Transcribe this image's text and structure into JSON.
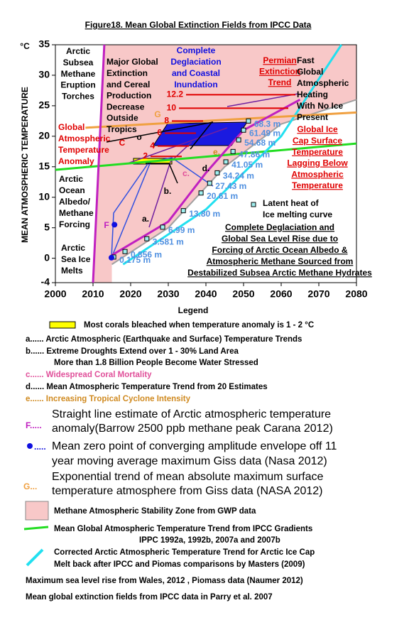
{
  "chart_data": {
    "type": "line",
    "title": "Figure18. Mean Global Extinction Fields from IPCC Data",
    "y_unit": "°C",
    "ylabel": "MEAN ATMOSPHERIC TEMPERATURE",
    "xlabel": "Legend",
    "xlim": [
      2000,
      2080
    ],
    "xticks": [
      2000,
      2010,
      2020,
      2030,
      2040,
      2050,
      2060,
      2070,
      2080
    ],
    "ylim": [
      -4,
      35
    ],
    "yticks": [
      -4,
      0,
      5,
      10,
      15,
      20,
      25,
      30,
      35
    ],
    "series": [
      {
        "color": "#a0a0a0",
        "x": [
          2015,
          2030,
          2045,
          2060,
          2080
        ],
        "values": [
          -1,
          5,
          15,
          22,
          26
        ]
      },
      {
        "color": "#22dd22",
        "x": [
          2000,
          2080
        ],
        "values": [
          14.5,
          18.8
        ]
      },
      {
        "color": "#22e0f0",
        "x": [
          2018,
          2040,
          2060,
          2076
        ],
        "values": [
          -1,
          8,
          20,
          35
        ]
      },
      {
        "color": "#f0a040",
        "x": [
          2008,
          2080
        ],
        "values": [
          21.4,
          23.9
        ]
      },
      {
        "color": "#c020c0",
        "x": [
          2010,
          2013
        ],
        "values": [
          -4,
          35
        ]
      },
      {
        "color": "#c020c0",
        "x": [
          2015,
          2030,
          2040,
          2050,
          2065
        ],
        "values": [
          0.5,
          6,
          14,
          21,
          26
        ]
      }
    ],
    "sea_level": {
      "color": "#5090e0",
      "x": [
        2015.5,
        2018.5,
        2024.3,
        2028.5,
        2034,
        2038.7,
        2041,
        2043,
        2045.3,
        2047.2,
        2048.7,
        2050,
        2051.3
      ],
      "values": [
        0.2,
        1.1,
        3.2,
        5.1,
        7.8,
        10.7,
        12.3,
        14,
        15.8,
        17.5,
        19.4,
        21,
        22.5
      ],
      "labels": [
        "0.175 m",
        "0.856 m",
        "3.581 m",
        "6.99 m",
        "13.80 m",
        "20.61 m",
        "27.43 m",
        "34.24 m",
        "41.05 m",
        "47.86 m",
        "54.68 m",
        "61.49 m",
        "68.3 m"
      ]
    },
    "blue_points": {
      "color": "#1010e0",
      "x": [
        2014.9,
        2015.7
      ],
      "values": [
        0.1,
        5.5
      ]
    },
    "anomaly_levels": [
      {
        "value": 16.7,
        "label": "2"
      },
      {
        "value": 18.4,
        "label": "4"
      },
      {
        "value": 20.5,
        "label": "6"
      },
      {
        "value": 22.5,
        "label": "8"
      },
      {
        "value": 24.6,
        "label": "10"
      },
      {
        "value": 26.8,
        "label": "12.2"
      }
    ],
    "annotations": [
      [
        "Arctic",
        "Subsea",
        "Methane",
        "Eruption",
        "Torches"
      ],
      [
        "Major Global",
        "Extinction",
        "and Cereal",
        "Production",
        "Decrease",
        "Outside",
        "Tropics"
      ],
      [
        "Complete",
        "Deglaciation",
        "and Coastal",
        "Inundation"
      ],
      [
        "Permian",
        "Extinction",
        "Trend"
      ],
      [
        "Fast",
        "Global",
        "Atmospheric",
        "Heating",
        "With No Ice",
        "Present"
      ],
      [
        "Global",
        "Atmospheric",
        "Temperature",
        "Anomaly"
      ],
      [
        "Global Ice",
        "Cap Surface",
        "Temperature",
        "Lagging Below",
        "Atmospheric",
        "Temperature"
      ],
      [
        "Arctic",
        "Ocean",
        "Albedo/",
        "Methane",
        "Forcing"
      ],
      [
        "Arctic",
        "Sea Ice",
        "Melts"
      ],
      [
        "Latent heat of",
        "Ice melting curve"
      ],
      [
        "Complete Deglaciation and",
        "Global Sea Level Rise due to",
        "Forcing of Arctic Ocean Albedo &",
        "Atmospheric Methane Sourced from",
        "Destabilized Subsea Arctic Methane Hydrates"
      ],
      [
        "G"
      ],
      [
        "C"
      ],
      [
        "o"
      ],
      [
        "F"
      ],
      [
        "a."
      ],
      [
        "b."
      ],
      [
        "c."
      ],
      [
        "d."
      ],
      [
        "e."
      ]
    ]
  },
  "legend": [
    "Most corals bleached when temperature anomaly is 1 - 2 °C",
    "a...... Arctic Atmospheric (Earthquake and Surface) Temperature Trends",
    "b...... Extreme Droughts Extend over 1 - 30% Land Area",
    "More than 1.8 Billion People Become Water Stressed",
    "c...... Widespread Coral Mortality",
    "d...... Mean Atmospheric Temperature Trend from 20 Estimates",
    "e...... Increasing Tropical Cyclone Intensity",
    "F.....",
    "Straight line estimate of Arctic atmospheric temperature",
    "anomaly(Barrow 2500 ppb methane peak Carana 2012)",
    ".....",
    "Mean zero point of converging amplitude envelope off 11",
    "year moving average maximum Giss data (Nasa 2012)",
    "G...",
    "Exponential trend of mean absolute maximum surface",
    "temperature atmosphere from Giss data (NASA 2012)",
    "Methane Atmospheric Stability Zone from GWP data",
    "Mean Global Atmospheric Temperature Trend from IPCC Gradients",
    "IPPC 1992a, 1992b, 2007a and 2007b",
    "Corrected Arctic Atmospheric Temperature Trend for Arctic Ice Cap",
    "Melt back after IPCC and Piomas comparisons by Masters (2009)",
    "Maximum sea level rise from Wales, 2012 , Piomass data (Naumer 2012)",
    "Mean global extinction fields from IPCC data in Parry et al. 2007"
  ]
}
